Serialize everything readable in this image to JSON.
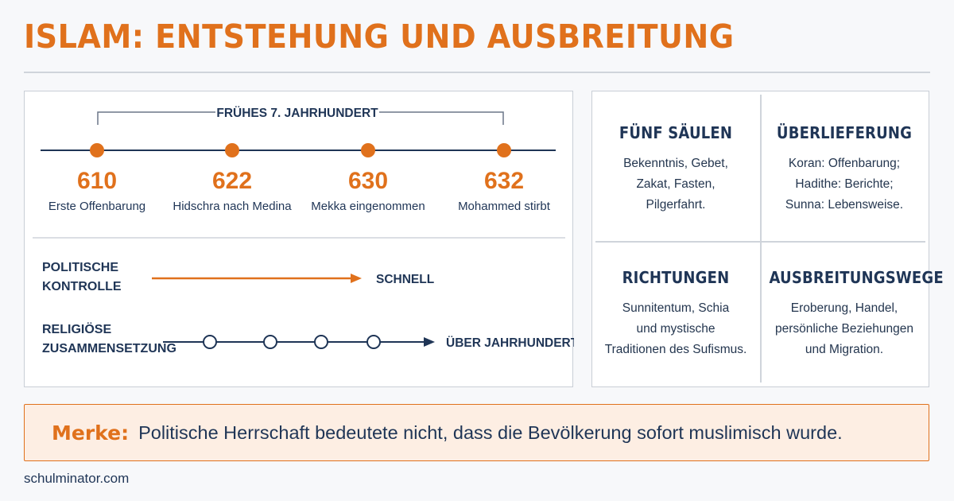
{
  "title": "ISLAM: ENTSTEHUNG UND AUSBREITUNG",
  "timeline": {
    "bracket_label": "FRÜHES 7. JAHRHUNDERT",
    "events": [
      {
        "year": "610",
        "label": "Erste Offenbarung"
      },
      {
        "year": "622",
        "label": "Hidschra nach Medina"
      },
      {
        "year": "630",
        "label": "Mekka eingenommen"
      },
      {
        "year": "632",
        "label": "Mohammed stirbt"
      }
    ]
  },
  "comparison": {
    "political": {
      "label_line1": "POLITISCHE",
      "label_line2": "KONTROLLE",
      "result": "SCHNELL"
    },
    "religious": {
      "label_line1": "RELIGIÖSE",
      "label_line2": "ZUSAMMENSETZUNG",
      "result": "ÜBER JAHRHUNDERTE"
    }
  },
  "grid": [
    {
      "heading": "FÜNF SÄULEN",
      "text": "Bekenntnis, Gebet,\nZakat, Fasten,\nPilgerfahrt."
    },
    {
      "heading": "ÜBERLIEFERUNG",
      "text": "Koran: Offenbarung;\nHadithe: Berichte;\nSunna: Lebensweise."
    },
    {
      "heading": "RICHTUNGEN",
      "text": "Sunnitentum, Schia\nund mystische\nTraditionen des Sufismus."
    },
    {
      "heading": "AUSBREITUNGSWEGE",
      "text": "Eroberung, Handel,\npersönliche Beziehungen\nund Migration."
    }
  ],
  "note": {
    "label": "Merke:",
    "text": "Politische Herrschaft bedeutete nicht, dass die Bevölkerung sofort muslimisch wurde."
  },
  "footer": "schulminator.com",
  "colors": {
    "accent": "#e0711c",
    "navy": "#1f3556",
    "note_bg": "#fdeee3",
    "border": "#c9ced6"
  }
}
